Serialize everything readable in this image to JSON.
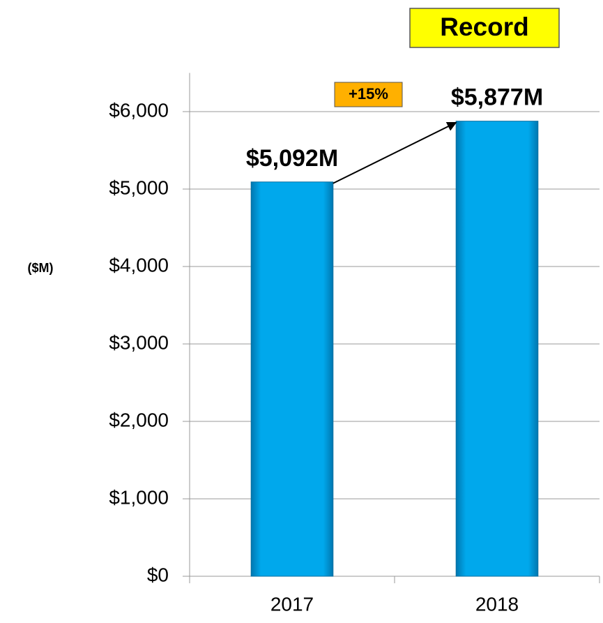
{
  "chart_data": {
    "type": "bar",
    "categories": [
      "2017",
      "2018"
    ],
    "values": [
      5092,
      5877
    ],
    "value_labels": [
      "$5,092M",
      "$5,877M"
    ],
    "color": "#00a8ec",
    "y_axis_label": "($M)",
    "annotations": [
      "+15%",
      "Record"
    ],
    "ylim": [
      0,
      6500
    ],
    "yticks": [
      {
        "value": 0,
        "label": "$0"
      },
      {
        "value": 1000,
        "label": "$1,000"
      },
      {
        "value": 2000,
        "label": "$2,000"
      },
      {
        "value": 3000,
        "label": "$3,000"
      },
      {
        "value": 4000,
        "label": "$4,000"
      },
      {
        "value": 5000,
        "label": "$5,000"
      },
      {
        "value": 6000,
        "label": "$6,000"
      }
    ],
    "grid": true
  }
}
